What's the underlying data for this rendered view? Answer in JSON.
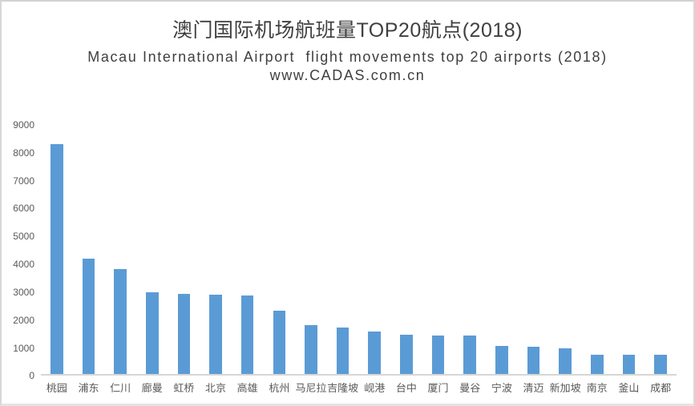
{
  "chart_data": {
    "type": "bar",
    "title": "澳门国际机场航班量TOP20航点(2018)",
    "subtitle": "Macau International Airport  flight movements top 20 airports (2018)",
    "watermark": "www.CADAS.com.cn",
    "categories": [
      "桃园",
      "浦东",
      "仁川",
      "廊曼",
      "虹桥",
      "北京",
      "高雄",
      "杭州",
      "马尼拉",
      "吉隆坡",
      "岘港",
      "台中",
      "厦门",
      "曼谷",
      "宁波",
      "清迈",
      "新加坡",
      "南京",
      "釜山",
      "成都"
    ],
    "values": [
      8250,
      4140,
      3760,
      2930,
      2890,
      2850,
      2820,
      2280,
      1760,
      1690,
      1540,
      1430,
      1400,
      1400,
      1020,
      1000,
      930,
      710,
      700,
      690
    ],
    "xlabel": "",
    "ylabel": "",
    "ylim": [
      0,
      9000
    ],
    "ytick_step": 1000,
    "grid": false,
    "legend": false,
    "colors": {
      "bar": "#5B9BD5",
      "axis_line": "#D6D6D6",
      "tick_label": "#595959",
      "title": "#404040",
      "subtitle": "#3F3F3F",
      "frame_border": "#D4D4D4",
      "frame_bottom": "#E4E4E4",
      "background": "#FFFFFF"
    }
  }
}
